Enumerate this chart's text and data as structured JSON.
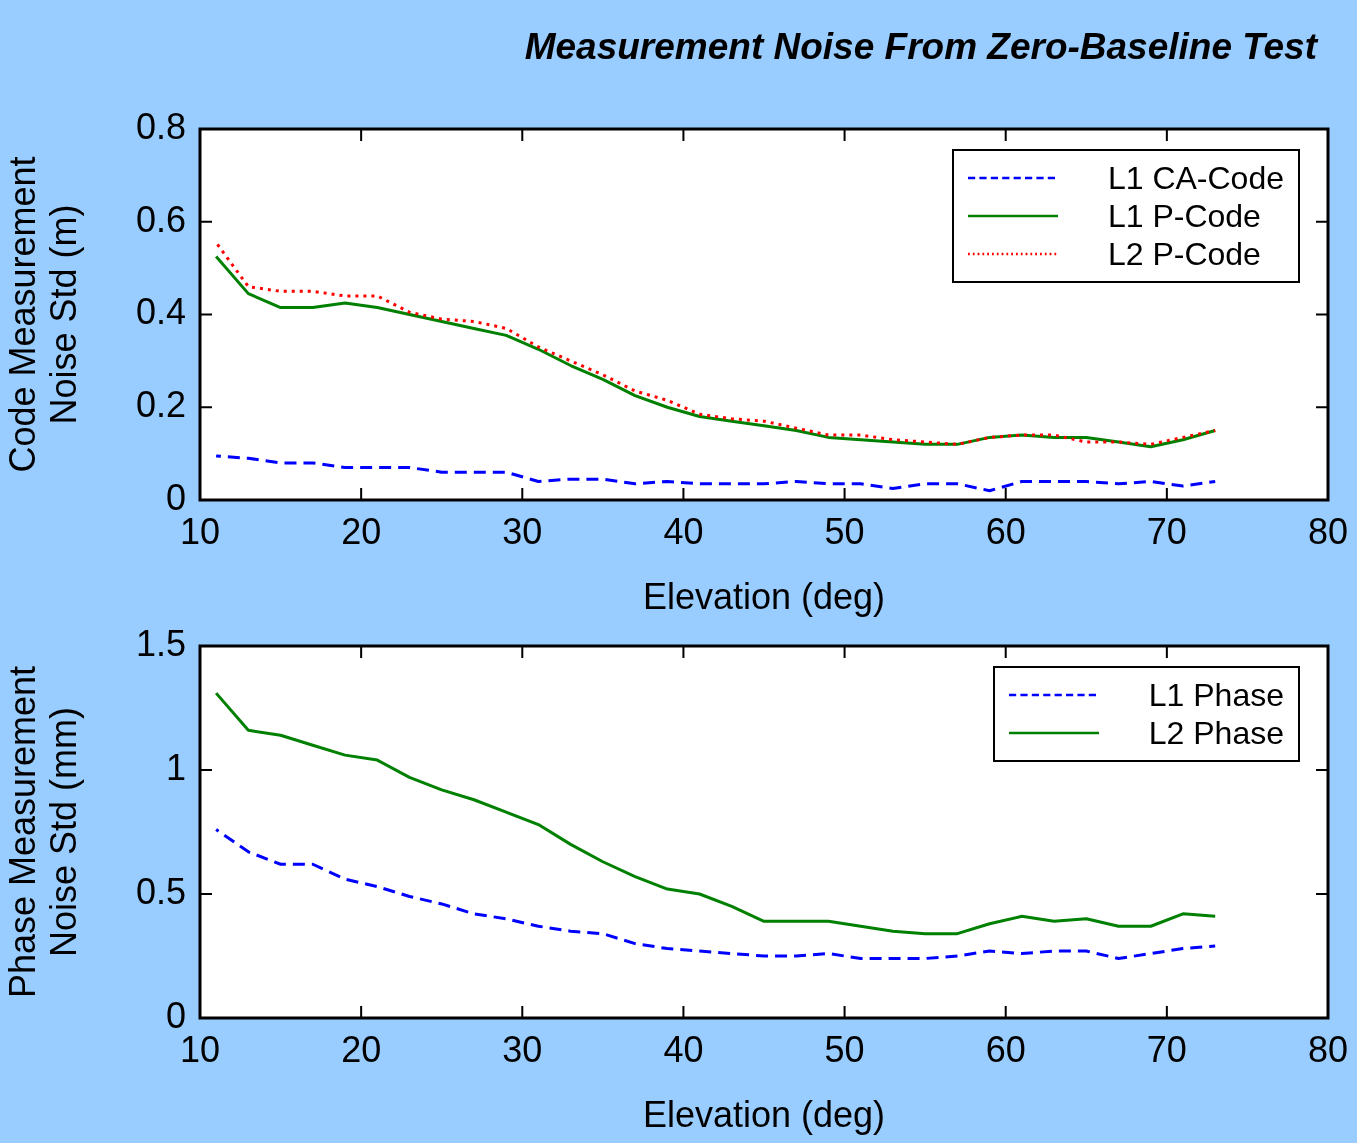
{
  "chart_data": [
    {
      "type": "line",
      "title": "Measurement Noise From Zero-Baseline Test",
      "xlabel": "Elevation (deg)",
      "ylabel": "Code Measurement Noise Std (m)",
      "x": [
        11,
        13,
        15,
        17,
        19,
        21,
        23,
        25,
        27,
        29,
        31,
        33,
        35,
        37,
        39,
        41,
        43,
        45,
        47,
        49,
        51,
        53,
        55,
        57,
        59,
        61,
        63,
        65,
        67,
        69,
        71,
        73
      ],
      "series": [
        {
          "name": "L1 CA-Code",
          "color": "#0000ff",
          "line_style": "dashed",
          "values": [
            0.095,
            0.09,
            0.08,
            0.08,
            0.07,
            0.07,
            0.07,
            0.06,
            0.06,
            0.06,
            0.04,
            0.045,
            0.045,
            0.035,
            0.04,
            0.035,
            0.035,
            0.035,
            0.04,
            0.035,
            0.035,
            0.025,
            0.035,
            0.035,
            0.02,
            0.04,
            0.04,
            0.04,
            0.035,
            0.04,
            0.03,
            0.04
          ]
        },
        {
          "name": "L1 P-Code",
          "color": "#008000",
          "line_style": "solid",
          "values": [
            0.525,
            0.445,
            0.415,
            0.415,
            0.425,
            0.415,
            0.4,
            0.385,
            0.37,
            0.355,
            0.325,
            0.29,
            0.26,
            0.225,
            0.2,
            0.18,
            0.17,
            0.16,
            0.15,
            0.135,
            0.13,
            0.125,
            0.12,
            0.12,
            0.135,
            0.14,
            0.135,
            0.135,
            0.125,
            0.115,
            0.13,
            0.15
          ]
        },
        {
          "name": "L2 P-Code",
          "color": "#ff0000",
          "line_style": "dotted",
          "values": [
            0.555,
            0.46,
            0.45,
            0.45,
            0.44,
            0.44,
            0.405,
            0.39,
            0.385,
            0.37,
            0.33,
            0.3,
            0.27,
            0.235,
            0.215,
            0.185,
            0.175,
            0.17,
            0.155,
            0.14,
            0.14,
            0.13,
            0.125,
            0.12,
            0.135,
            0.14,
            0.14,
            0.125,
            0.125,
            0.12,
            0.135,
            0.15
          ]
        }
      ],
      "xlim": [
        10,
        80
      ],
      "xticks": [
        10,
        20,
        30,
        40,
        50,
        60,
        70,
        80
      ],
      "ylim": [
        0,
        0.8
      ],
      "yticks": [
        0,
        0.2,
        0.4,
        0.6,
        0.8
      ],
      "grid": false,
      "legend": "top right",
      "marker": "none"
    },
    {
      "type": "line",
      "xlabel": "Elevation (deg)",
      "ylabel": "Phase Measurement Noise Std (mm)",
      "x": [
        11,
        13,
        15,
        17,
        19,
        21,
        23,
        25,
        27,
        29,
        31,
        33,
        35,
        37,
        39,
        41,
        43,
        45,
        47,
        49,
        51,
        53,
        55,
        57,
        59,
        61,
        63,
        65,
        67,
        69,
        71,
        73
      ],
      "series": [
        {
          "name": "L1 Phase",
          "color": "#0000ff",
          "line_style": "dashed",
          "values": [
            0.76,
            0.67,
            0.62,
            0.62,
            0.56,
            0.53,
            0.49,
            0.46,
            0.42,
            0.4,
            0.37,
            0.35,
            0.34,
            0.3,
            0.28,
            0.27,
            0.26,
            0.25,
            0.25,
            0.26,
            0.24,
            0.24,
            0.24,
            0.25,
            0.27,
            0.26,
            0.27,
            0.27,
            0.24,
            0.26,
            0.28,
            0.29
          ]
        },
        {
          "name": "L2 Phase",
          "color": "#008000",
          "line_style": "solid",
          "values": [
            1.31,
            1.16,
            1.14,
            1.1,
            1.06,
            1.04,
            0.97,
            0.92,
            0.88,
            0.83,
            0.78,
            0.7,
            0.63,
            0.57,
            0.52,
            0.5,
            0.45,
            0.39,
            0.39,
            0.39,
            0.37,
            0.35,
            0.34,
            0.34,
            0.38,
            0.41,
            0.39,
            0.4,
            0.37,
            0.37,
            0.42,
            0.41
          ]
        }
      ],
      "xlim": [
        10,
        80
      ],
      "xticks": [
        10,
        20,
        30,
        40,
        50,
        60,
        70,
        80
      ],
      "ylim": [
        0,
        1.5
      ],
      "yticks": [
        0,
        0.5,
        1,
        1.5
      ],
      "grid": false,
      "legend": "top right",
      "marker": "none"
    }
  ]
}
